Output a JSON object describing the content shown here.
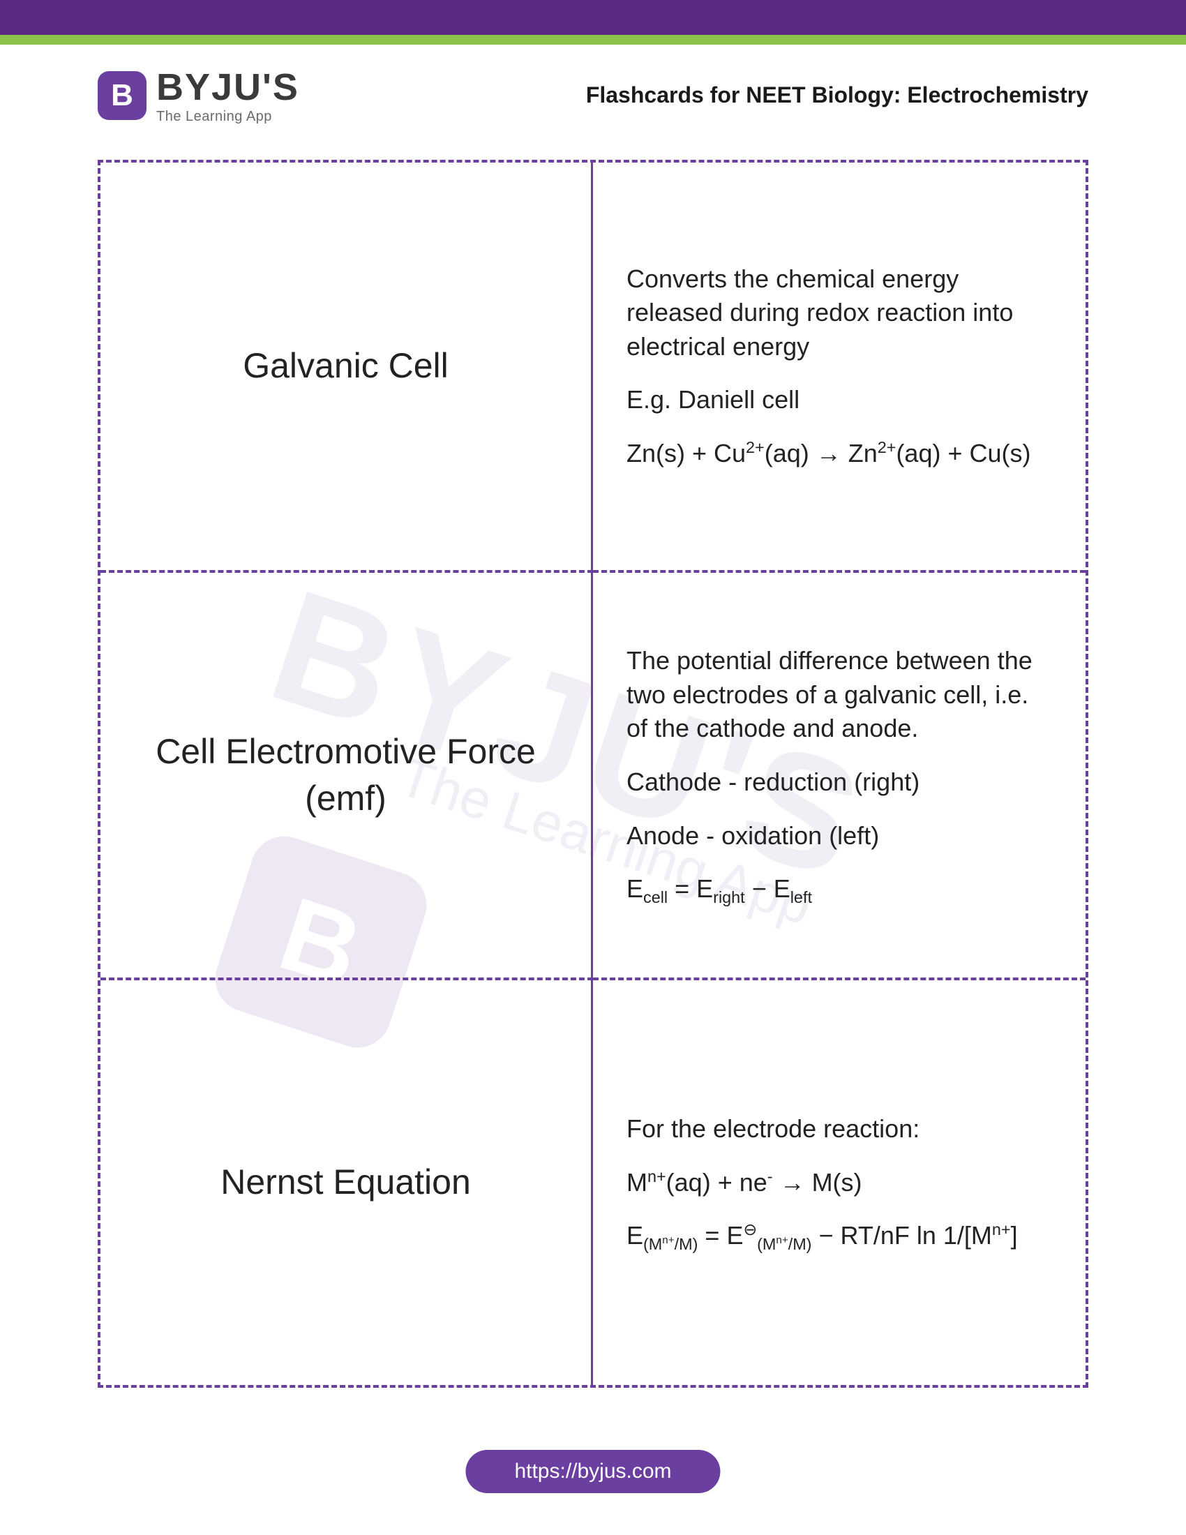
{
  "brand": {
    "badge_letter": "B",
    "name": "BYJU'S",
    "tagline": "The Learning App"
  },
  "page_title": "Flashcards for NEET Biology: Electrochemistry",
  "colors": {
    "accent": "#6b3fa0",
    "green": "#8bc34a"
  },
  "cards": [
    {
      "term": "Galvanic Cell",
      "def_line1": "Converts the chemical energy released during redox reaction into electrical energy",
      "def_line2": "E.g. Daniell cell",
      "def_line3_html": "Zn(s) + Cu<sup>2+</sup>(aq) → Zn<sup>2+</sup>(aq) + Cu(s)"
    },
    {
      "term": "Cell Electromotive Force (emf)",
      "def_line1": "The potential difference between the two electrodes of a galvanic cell, i.e. of the cathode and anode.",
      "def_line2": "Cathode - reduction (right)",
      "def_line3": "Anode - oxidation (left)",
      "def_line4_html": "E<sub>cell</sub> = E<sub>right</sub> − E<sub>left</sub>"
    },
    {
      "term": "Nernst Equation",
      "def_line1": "For the electrode reaction:",
      "def_line2_html": "M<sup>n+</sup>(aq) + ne<sup>-</sup> → M(s)",
      "def_line3_html": "E<sub>(M<sup>n+</sup>/M)</sub> = E<sup>⊖</sup><sub>(M<sup>n+</sup>/M)</sub>  − RT/nF ln 1/[M<sup>n+</sup>]"
    }
  ],
  "footer_url": "https://byjus.com",
  "watermark": {
    "big": "BYJU'S",
    "small": "The Learning App"
  }
}
